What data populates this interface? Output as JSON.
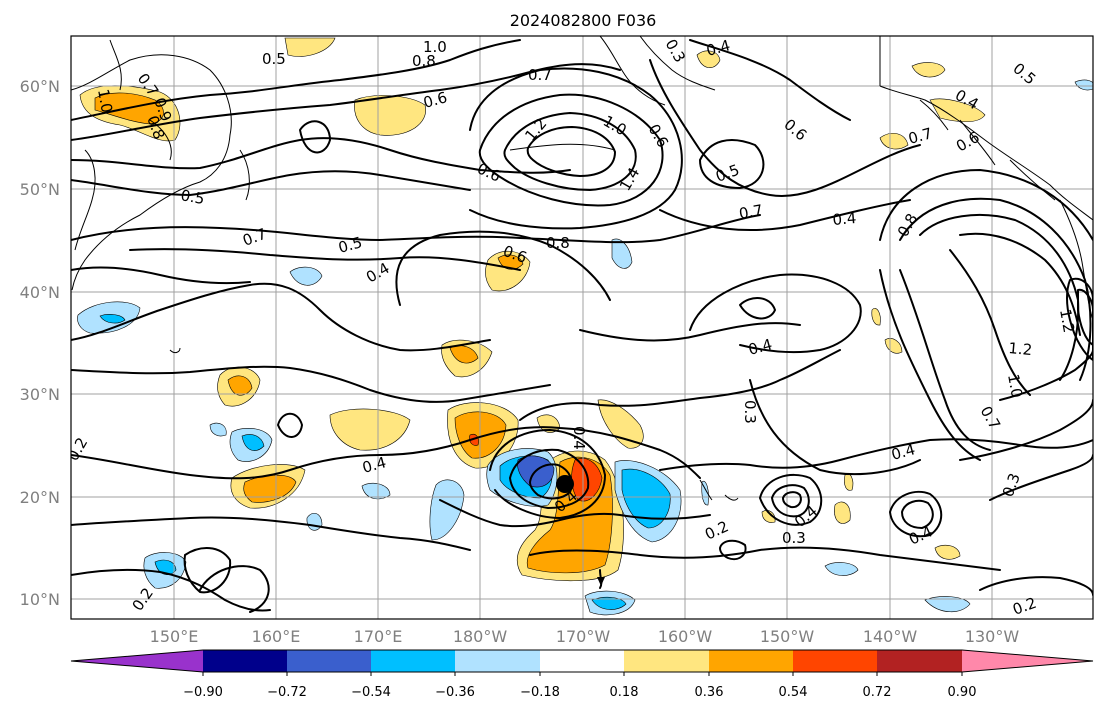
{
  "title": "2024082800 F036",
  "lat_labels": [
    "60°N",
    "50°N",
    "40°N",
    "30°N",
    "20°N",
    "10°N"
  ],
  "lon_labels": [
    "150°E",
    "160°E",
    "170°E",
    "180°W",
    "170°W",
    "160°W",
    "150°W",
    "140°W",
    "130°W"
  ],
  "contour_labels": [
    "1.0",
    "0.8",
    "0.7",
    "0.9",
    "0.5",
    "1.0",
    "0.8",
    "0.6",
    "0.5",
    "0.6",
    "0.7",
    "1.2",
    "1.0",
    "1.4",
    "0.6",
    "0.4",
    "0.5",
    "0.7",
    "0.4",
    "0.6",
    "0.5",
    "0.7",
    "0.4",
    "0.6",
    "0.8",
    "0.5",
    "0.4",
    "0.8",
    "1.2",
    "1.0",
    "0.7",
    "0.4",
    "0.4",
    "0.3",
    "0.4",
    "0.4",
    "0.3",
    "0.2",
    "0.3",
    "0.4",
    "0.3",
    "0.4",
    "0.2",
    "0.2",
    "0.2",
    "1.2",
    "0.6",
    "0.4",
    "0.7"
  ],
  "colorbar": {
    "ticks": [
      "−0.90",
      "−0.72",
      "−0.54",
      "−0.36",
      "−0.18",
      "0.18",
      "0.36",
      "0.54",
      "0.72",
      "0.90"
    ],
    "colors": [
      "#9932cc",
      "#00008b",
      "#3a5fcd",
      "#00bfff",
      "#b0e2ff",
      "#ffffff",
      "#ffe680",
      "#ffa500",
      "#ff4500",
      "#b22222",
      "#ff88aa"
    ]
  },
  "legend_colors": {
    "neg_strong": "#3a5fcd",
    "neg_mid": "#00bfff",
    "neg_weak": "#b0e2ff",
    "pos_weak": "#ffe680",
    "pos_mid": "#ffa500",
    "pos_strong": "#ff4500"
  }
}
